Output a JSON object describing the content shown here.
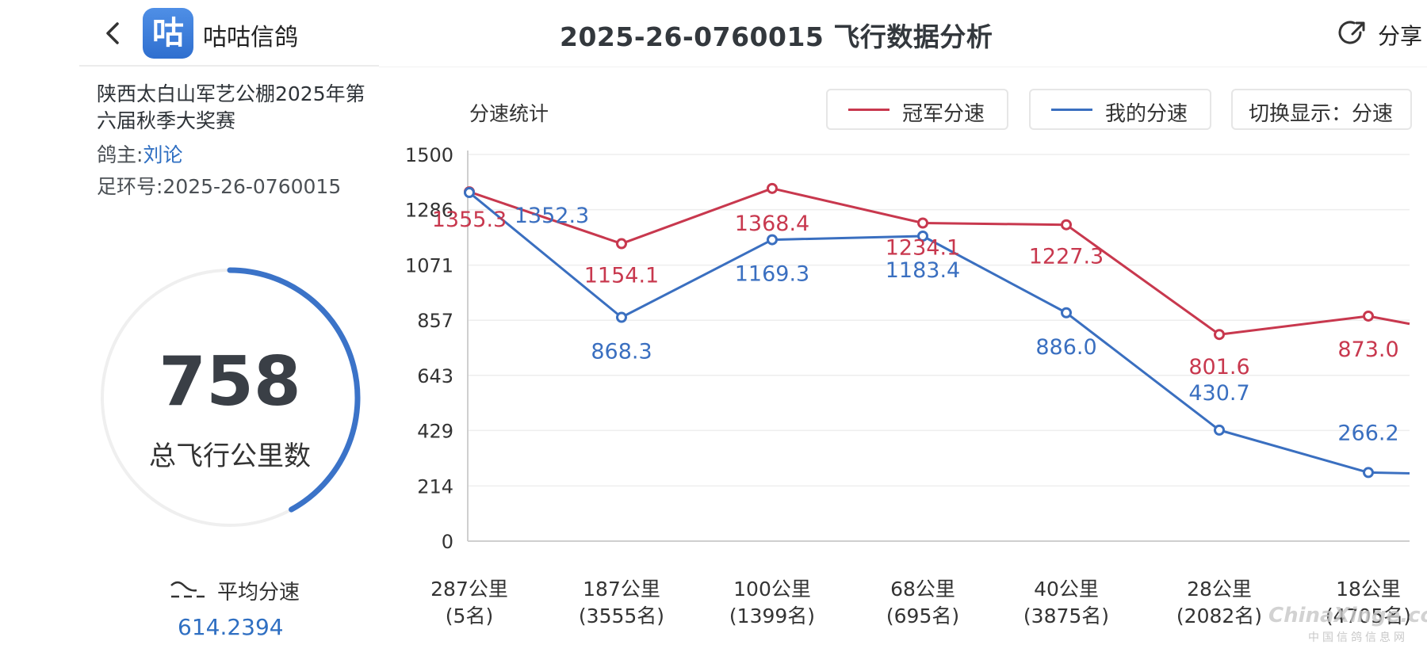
{
  "header": {
    "app_name": "咕咕信鸽",
    "app_logo_text": "咕",
    "title": "2025-26-0760015 飞行数据分析",
    "share_label": "分享"
  },
  "info": {
    "race_title": "陕西太白山军艺公棚2025年第六届秋季大奖赛",
    "owner_label": "鸽主:",
    "owner_name": "刘论",
    "ring_line": "足环号:2025-26-0760015"
  },
  "summary": {
    "total_value": "758",
    "total_label": "总飞行公里数",
    "progress": 0.42,
    "avg_label": "平均分速",
    "avg_value": "614.2394"
  },
  "chart_controls": {
    "title": "分速统计",
    "legend_champion": "冠军分速",
    "legend_mine": "我的分速",
    "toggle_label": "切换显示：分速"
  },
  "colors": {
    "champion": "#c8384e",
    "mine": "#3a6fc0",
    "ring": "#3b73c8"
  },
  "watermark": {
    "main": "ChinaXinge.com",
    "sub": "中国信鸽信息网"
  },
  "chart_data": {
    "type": "line",
    "categories": [
      [
        "287公里",
        "(5名)"
      ],
      [
        "187公里",
        "(3555名)"
      ],
      [
        "100公里",
        "(1399名)"
      ],
      [
        "68公里",
        "(695名)"
      ],
      [
        "40公里",
        "(3875名)"
      ],
      [
        "28公里",
        "(2082名)"
      ],
      [
        "18公里",
        "(4705名)"
      ]
    ],
    "y_ticks": [
      "0",
      "214",
      "429",
      "643",
      "857",
      "1071",
      "1286",
      "1500"
    ],
    "ylim": [
      0,
      1500
    ],
    "series": [
      {
        "name": "冠军分速",
        "values": [
          1355.3,
          1154.1,
          1368.4,
          1234.1,
          1227.3,
          801.6,
          873.0
        ],
        "labels": [
          "1355.3",
          "1154.1",
          "1368.4",
          "1234.1",
          "1227.3",
          "801.6",
          "873.0"
        ]
      },
      {
        "name": "我的分速",
        "values": [
          1352.3,
          868.3,
          1169.3,
          1183.4,
          886.0,
          430.7,
          266.2
        ],
        "labels": [
          "1352.3",
          "868.3",
          "1169.3",
          "1183.4",
          "886.0",
          "430.7",
          "266.2"
        ]
      }
    ]
  }
}
